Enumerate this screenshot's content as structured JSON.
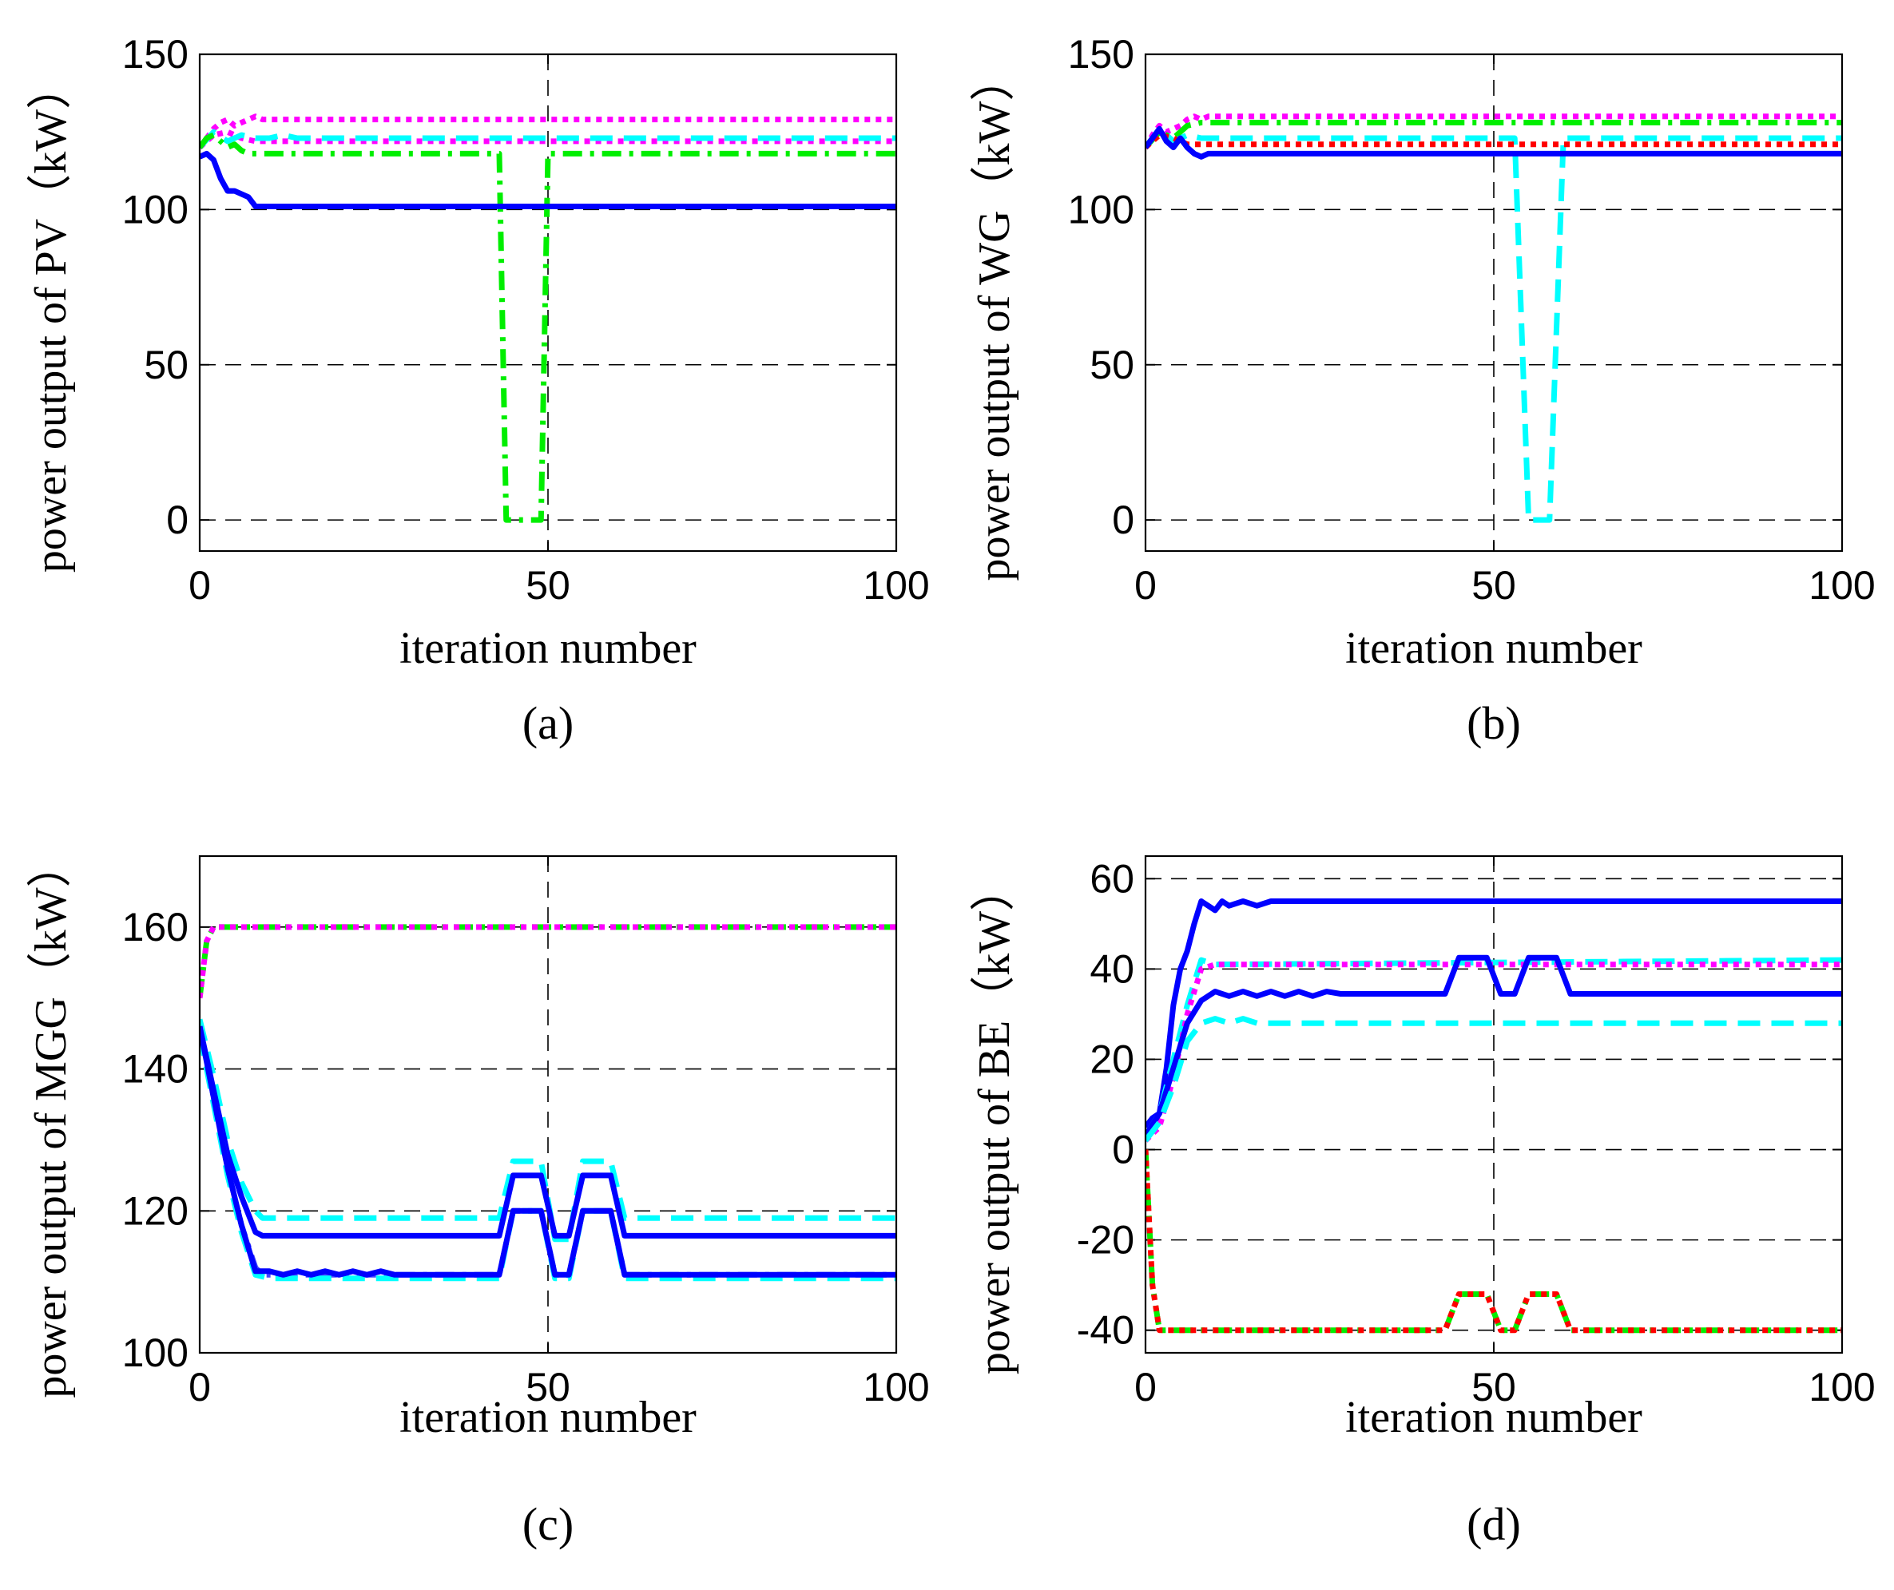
{
  "charts": [
    {
      "type": "line",
      "caption": "(a)",
      "xlabel": "iteration number",
      "ylabel": "power output of PV（kW）",
      "xlim": [
        0,
        100
      ],
      "ylim": [
        -10,
        150
      ],
      "xticks": [
        0,
        50,
        100
      ],
      "xtick_labels": [
        "0",
        "50",
        "100"
      ],
      "yticks": [
        0,
        50,
        100,
        150
      ],
      "ytick_labels": [
        "0",
        "50",
        "100",
        "150"
      ],
      "grid": true,
      "series": [
        {
          "color": "#ff00ff",
          "style": "dotted",
          "x": [
            0,
            1,
            2,
            3,
            4,
            5,
            6,
            7,
            8,
            9,
            10,
            100
          ],
          "y": [
            120,
            123,
            126,
            128,
            129,
            127,
            128,
            129,
            130,
            129,
            129,
            129
          ]
        },
        {
          "color": "#ff00ff",
          "style": "dotted",
          "x": [
            0,
            2,
            4,
            6,
            8,
            10,
            100
          ],
          "y": [
            120,
            124,
            125,
            123,
            122,
            122,
            122
          ]
        },
        {
          "color": "#00ffff",
          "style": "dashed",
          "x": [
            0,
            2,
            4,
            6,
            8,
            10,
            12,
            14,
            100
          ],
          "y": [
            120,
            125,
            122,
            124,
            123,
            123,
            124,
            123,
            123
          ]
        },
        {
          "color": "#00ee00",
          "style": "dashdot",
          "x": [
            0,
            1,
            2,
            3,
            4,
            5,
            6,
            7,
            8,
            43,
            44,
            49,
            50,
            100
          ],
          "y": [
            120,
            123,
            124,
            122,
            120,
            121,
            119,
            118,
            118,
            118,
            0,
            0,
            118,
            118
          ]
        },
        {
          "color": "#0000ff",
          "style": "solid",
          "x": [
            0,
            1,
            2,
            3,
            4,
            5,
            6,
            7,
            8,
            100
          ],
          "y": [
            117,
            118,
            116,
            110,
            106,
            106,
            105,
            104,
            101,
            101
          ]
        }
      ]
    },
    {
      "type": "line",
      "caption": "(b)",
      "xlabel": "iteration number",
      "ylabel": "power output of WG（kW）",
      "xlim": [
        0,
        100
      ],
      "ylim": [
        -10,
        150
      ],
      "xticks": [
        0,
        50,
        100
      ],
      "xtick_labels": [
        "0",
        "50",
        "100"
      ],
      "yticks": [
        0,
        50,
        100,
        150
      ],
      "ytick_labels": [
        "0",
        "50",
        "100",
        "150"
      ],
      "grid": true,
      "series": [
        {
          "color": "#ff00ff",
          "style": "dotted",
          "x": [
            0,
            1,
            2,
            3,
            4,
            5,
            6,
            7,
            8,
            9,
            10,
            100
          ],
          "y": [
            120,
            124,
            127,
            125,
            126,
            127,
            129,
            130,
            129,
            130,
            130,
            130
          ]
        },
        {
          "color": "#00ee00",
          "style": "dashdot",
          "x": [
            0,
            2,
            4,
            6,
            8,
            10,
            100
          ],
          "y": [
            120,
            125,
            123,
            127,
            128,
            128,
            128
          ]
        },
        {
          "color": "#00ffff",
          "style": "dashed",
          "x": [
            0,
            2,
            4,
            6,
            8,
            10,
            53,
            55,
            58,
            60,
            100
          ],
          "y": [
            120,
            126,
            122,
            124,
            123,
            123,
            123,
            0,
            0,
            123,
            123
          ]
        },
        {
          "color": "#ff0000",
          "style": "dotted",
          "x": [
            0,
            2,
            4,
            6,
            8,
            10,
            100
          ],
          "y": [
            120,
            124,
            123,
            121,
            121,
            121,
            121
          ]
        },
        {
          "color": "#0000ff",
          "style": "solid",
          "x": [
            0,
            1,
            2,
            3,
            4,
            5,
            6,
            7,
            8,
            9,
            100
          ],
          "y": [
            120,
            123,
            126,
            122,
            120,
            123,
            120,
            118,
            117,
            118,
            118
          ]
        }
      ]
    },
    {
      "type": "line",
      "caption": "(c)",
      "xlabel": "iteration number",
      "ylabel": "power output of MGG（kW）",
      "xlim": [
        0,
        100
      ],
      "ylim": [
        100,
        170
      ],
      "xticks": [
        0,
        50,
        100
      ],
      "xtick_labels": [
        "0",
        "50",
        "100"
      ],
      "yticks": [
        100,
        120,
        140,
        160
      ],
      "ytick_labels": [
        "100",
        "120",
        "140",
        "160"
      ],
      "grid": true,
      "series": [
        {
          "color": "#00ee00",
          "style": "dashdot",
          "x": [
            0,
            1,
            2,
            100
          ],
          "y": [
            150,
            158,
            160,
            160
          ]
        },
        {
          "color": "#ff00ff",
          "style": "dotted",
          "x": [
            0,
            1,
            2,
            100
          ],
          "y": [
            150,
            158,
            160,
            160
          ]
        },
        {
          "color": "#00ffff",
          "style": "dashed",
          "x": [
            0,
            2,
            4,
            6,
            8,
            9,
            43,
            45,
            49,
            51,
            53,
            55,
            59,
            61,
            100
          ],
          "y": [
            147,
            139,
            130,
            124,
            120,
            119,
            119,
            127,
            127,
            116,
            116,
            127,
            127,
            119,
            119
          ]
        },
        {
          "color": "#0000ff",
          "style": "solid",
          "x": [
            0,
            2,
            4,
            6,
            8,
            9,
            43,
            45,
            49,
            51,
            53,
            55,
            59,
            61,
            100
          ],
          "y": [
            146,
            137,
            128,
            122,
            117,
            116.5,
            116.5,
            125,
            125,
            116.5,
            116.5,
            125,
            125,
            116.5,
            116.5
          ]
        },
        {
          "color": "#4444ff",
          "style": "dashdot",
          "x": [
            0,
            2,
            4,
            6,
            8,
            9,
            43,
            45,
            49,
            51,
            53,
            55,
            59,
            61,
            100
          ],
          "y": [
            146,
            136,
            126,
            118,
            112,
            111,
            111,
            120,
            120,
            111,
            111,
            120,
            120,
            111,
            111
          ]
        },
        {
          "color": "#00ffff",
          "style": "dashed",
          "x": [
            0,
            2,
            4,
            6,
            8,
            10,
            43,
            45,
            49,
            51,
            53,
            55,
            59,
            61,
            100
          ],
          "y": [
            145,
            135,
            125,
            117,
            111,
            110.5,
            110.5,
            120,
            120,
            110.5,
            110.5,
            120,
            120,
            110.5,
            110.5
          ]
        },
        {
          "color": "#0000ff",
          "style": "solid",
          "x": [
            0,
            2,
            4,
            6,
            8,
            10,
            12,
            14,
            16,
            18,
            20,
            22,
            24,
            26,
            28,
            43,
            45,
            49,
            51,
            53,
            55,
            59,
            61,
            100
          ],
          "y": [
            146,
            136,
            126,
            118,
            111.5,
            111.5,
            111,
            111.5,
            111,
            111.5,
            111,
            111.5,
            111,
            111.5,
            111,
            111,
            120,
            120,
            111,
            111,
            120,
            120,
            111,
            111
          ]
        }
      ]
    },
    {
      "type": "line",
      "caption": "(d)",
      "xlabel": "iteration number",
      "ylabel": "power output of BE（kW）",
      "xlim": [
        0,
        100
      ],
      "ylim": [
        -45,
        65
      ],
      "xticks": [
        0,
        50,
        100
      ],
      "xtick_labels": [
        "0",
        "50",
        "100"
      ],
      "yticks": [
        -40,
        -20,
        0,
        20,
        40,
        60
      ],
      "ytick_labels": [
        "-40",
        "-20",
        "0",
        "20",
        "40",
        "60"
      ],
      "grid": true,
      "series": [
        {
          "color": "#0000ff",
          "style": "solid",
          "x": [
            0,
            1,
            2,
            3,
            4,
            5,
            6,
            7,
            8,
            9,
            10,
            11,
            12,
            14,
            16,
            18,
            20,
            100
          ],
          "y": [
            5,
            7,
            8,
            18,
            32,
            40,
            44,
            50,
            55,
            54,
            53,
            55,
            54,
            55,
            54,
            55,
            55,
            55
          ]
        },
        {
          "color": "#00ffff",
          "style": "dashed",
          "x": [
            0,
            2,
            4,
            6,
            8,
            10,
            100
          ],
          "y": [
            3,
            8,
            20,
            32,
            42,
            41,
            42
          ]
        },
        {
          "color": "#ff00ff",
          "style": "dotted",
          "x": [
            0,
            2,
            4,
            6,
            8,
            10,
            100
          ],
          "y": [
            2,
            5,
            16,
            30,
            40,
            41,
            41
          ]
        },
        {
          "color": "#0000ff",
          "style": "solid",
          "x": [
            0,
            2,
            4,
            6,
            8,
            10,
            12,
            14,
            16,
            18,
            20,
            22,
            24,
            26,
            28,
            43,
            45,
            49,
            51,
            53,
            55,
            59,
            61,
            100
          ],
          "y": [
            3,
            8,
            18,
            28,
            33,
            35,
            34,
            35,
            34,
            35,
            34,
            35,
            34,
            35,
            34.5,
            34.5,
            42.5,
            42.5,
            34.5,
            34.5,
            42.5,
            42.5,
            34.5,
            34.5
          ]
        },
        {
          "color": "#00ffff",
          "style": "dashed",
          "x": [
            0,
            2,
            4,
            6,
            8,
            10,
            12,
            14,
            16,
            18,
            100
          ],
          "y": [
            2,
            6,
            14,
            24,
            28,
            29,
            28,
            29,
            28,
            28,
            28
          ]
        },
        {
          "color": "#00ee00",
          "style": "dashdot",
          "x": [
            0,
            1,
            2,
            43,
            45,
            49,
            51,
            53,
            55,
            59,
            61,
            100
          ],
          "y": [
            0,
            -30,
            -40,
            -40,
            -32,
            -32,
            -40,
            -40,
            -32,
            -32,
            -40,
            -40
          ]
        },
        {
          "color": "#ff0000",
          "style": "dotted",
          "x": [
            0,
            1,
            2,
            43,
            45,
            49,
            51,
            53,
            55,
            59,
            61,
            100
          ],
          "y": [
            0,
            -30,
            -40,
            -40,
            -32,
            -32,
            -40,
            -40,
            -32,
            -32,
            -40,
            -40
          ]
        }
      ]
    }
  ]
}
